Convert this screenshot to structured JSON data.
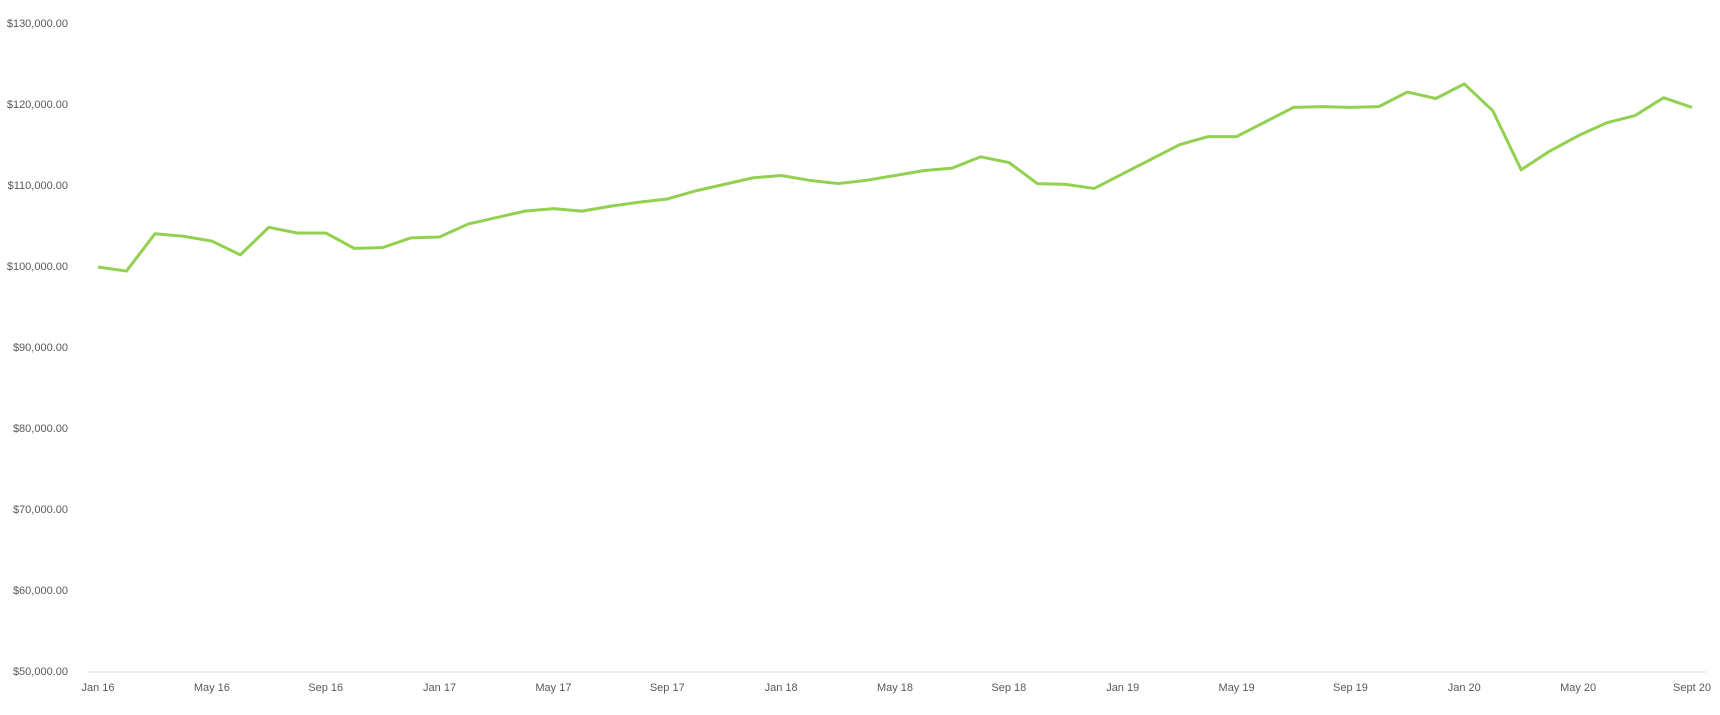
{
  "chart_data": {
    "type": "line",
    "categories": [
      "Jan 16",
      null,
      null,
      null,
      "May 16",
      null,
      null,
      null,
      "Sep 16",
      null,
      null,
      null,
      "Jan 17",
      null,
      null,
      null,
      "May 17",
      null,
      null,
      null,
      "Sep 17",
      null,
      null,
      null,
      "Jan 18",
      null,
      null,
      null,
      "May 18",
      null,
      null,
      null,
      "Sep 18",
      null,
      null,
      null,
      "Jan 19",
      null,
      null,
      null,
      "May 19",
      null,
      null,
      null,
      "Sep 19",
      null,
      null,
      null,
      "Jan 20",
      null,
      null,
      null,
      "May 20",
      null,
      null,
      null,
      "Sept 20"
    ],
    "series": [
      {
        "color": "#92d050",
        "values": [
          100000,
          99500,
          104100,
          103800,
          103200,
          101500,
          104900,
          104200,
          104200,
          102300,
          102400,
          103600,
          103700,
          105300,
          106100,
          106900,
          107200,
          106900,
          107500,
          108000,
          108400,
          109400,
          110200,
          111000,
          111300,
          110700,
          110300,
          110700,
          111300,
          111900,
          112200,
          113600,
          112900,
          110300,
          110200,
          109700,
          111500,
          113300,
          115100,
          116100,
          116100,
          117900,
          119700,
          119800,
          119700,
          119800,
          121600,
          120800,
          122600,
          119300,
          112000,
          114300,
          116200,
          117800,
          118700,
          120900,
          119700
        ]
      }
    ],
    "ylim": [
      50000,
      130000
    ],
    "yticks": [
      {
        "value": 50000,
        "label": "$50,000.00"
      },
      {
        "value": 60000,
        "label": "$60,000.00"
      },
      {
        "value": 70000,
        "label": "$70,000.00"
      },
      {
        "value": 80000,
        "label": "$80,000.00"
      },
      {
        "value": 90000,
        "label": "$90,000.00"
      },
      {
        "value": 100000,
        "label": "$100,000.00"
      },
      {
        "value": 110000,
        "label": "$110,000.00"
      },
      {
        "value": 120000,
        "label": "$120,000.00"
      },
      {
        "value": 130000,
        "label": "$130,000.00"
      }
    ],
    "grid": false
  }
}
